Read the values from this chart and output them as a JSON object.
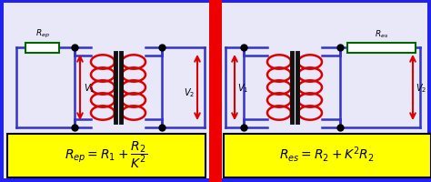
{
  "bg_color": "#2222ee",
  "left_bg": "#e8e8f8",
  "right_bg": "#e8e8f8",
  "divider_color": "#ee0000",
  "formula_bg": "#ffff00",
  "line_color": "#3333cc",
  "coil_color": "#dd0000",
  "core_color": "#111111",
  "resistor_color": "#006600",
  "dot_color": "#000000",
  "formula_left": "$R_{ep} = R_1 + \\dfrac{R_2}{K^2}$",
  "formula_right": "$R_{es} = R_2 + K^2R_2$",
  "figsize": [
    4.74,
    2.01
  ],
  "dpi": 100
}
